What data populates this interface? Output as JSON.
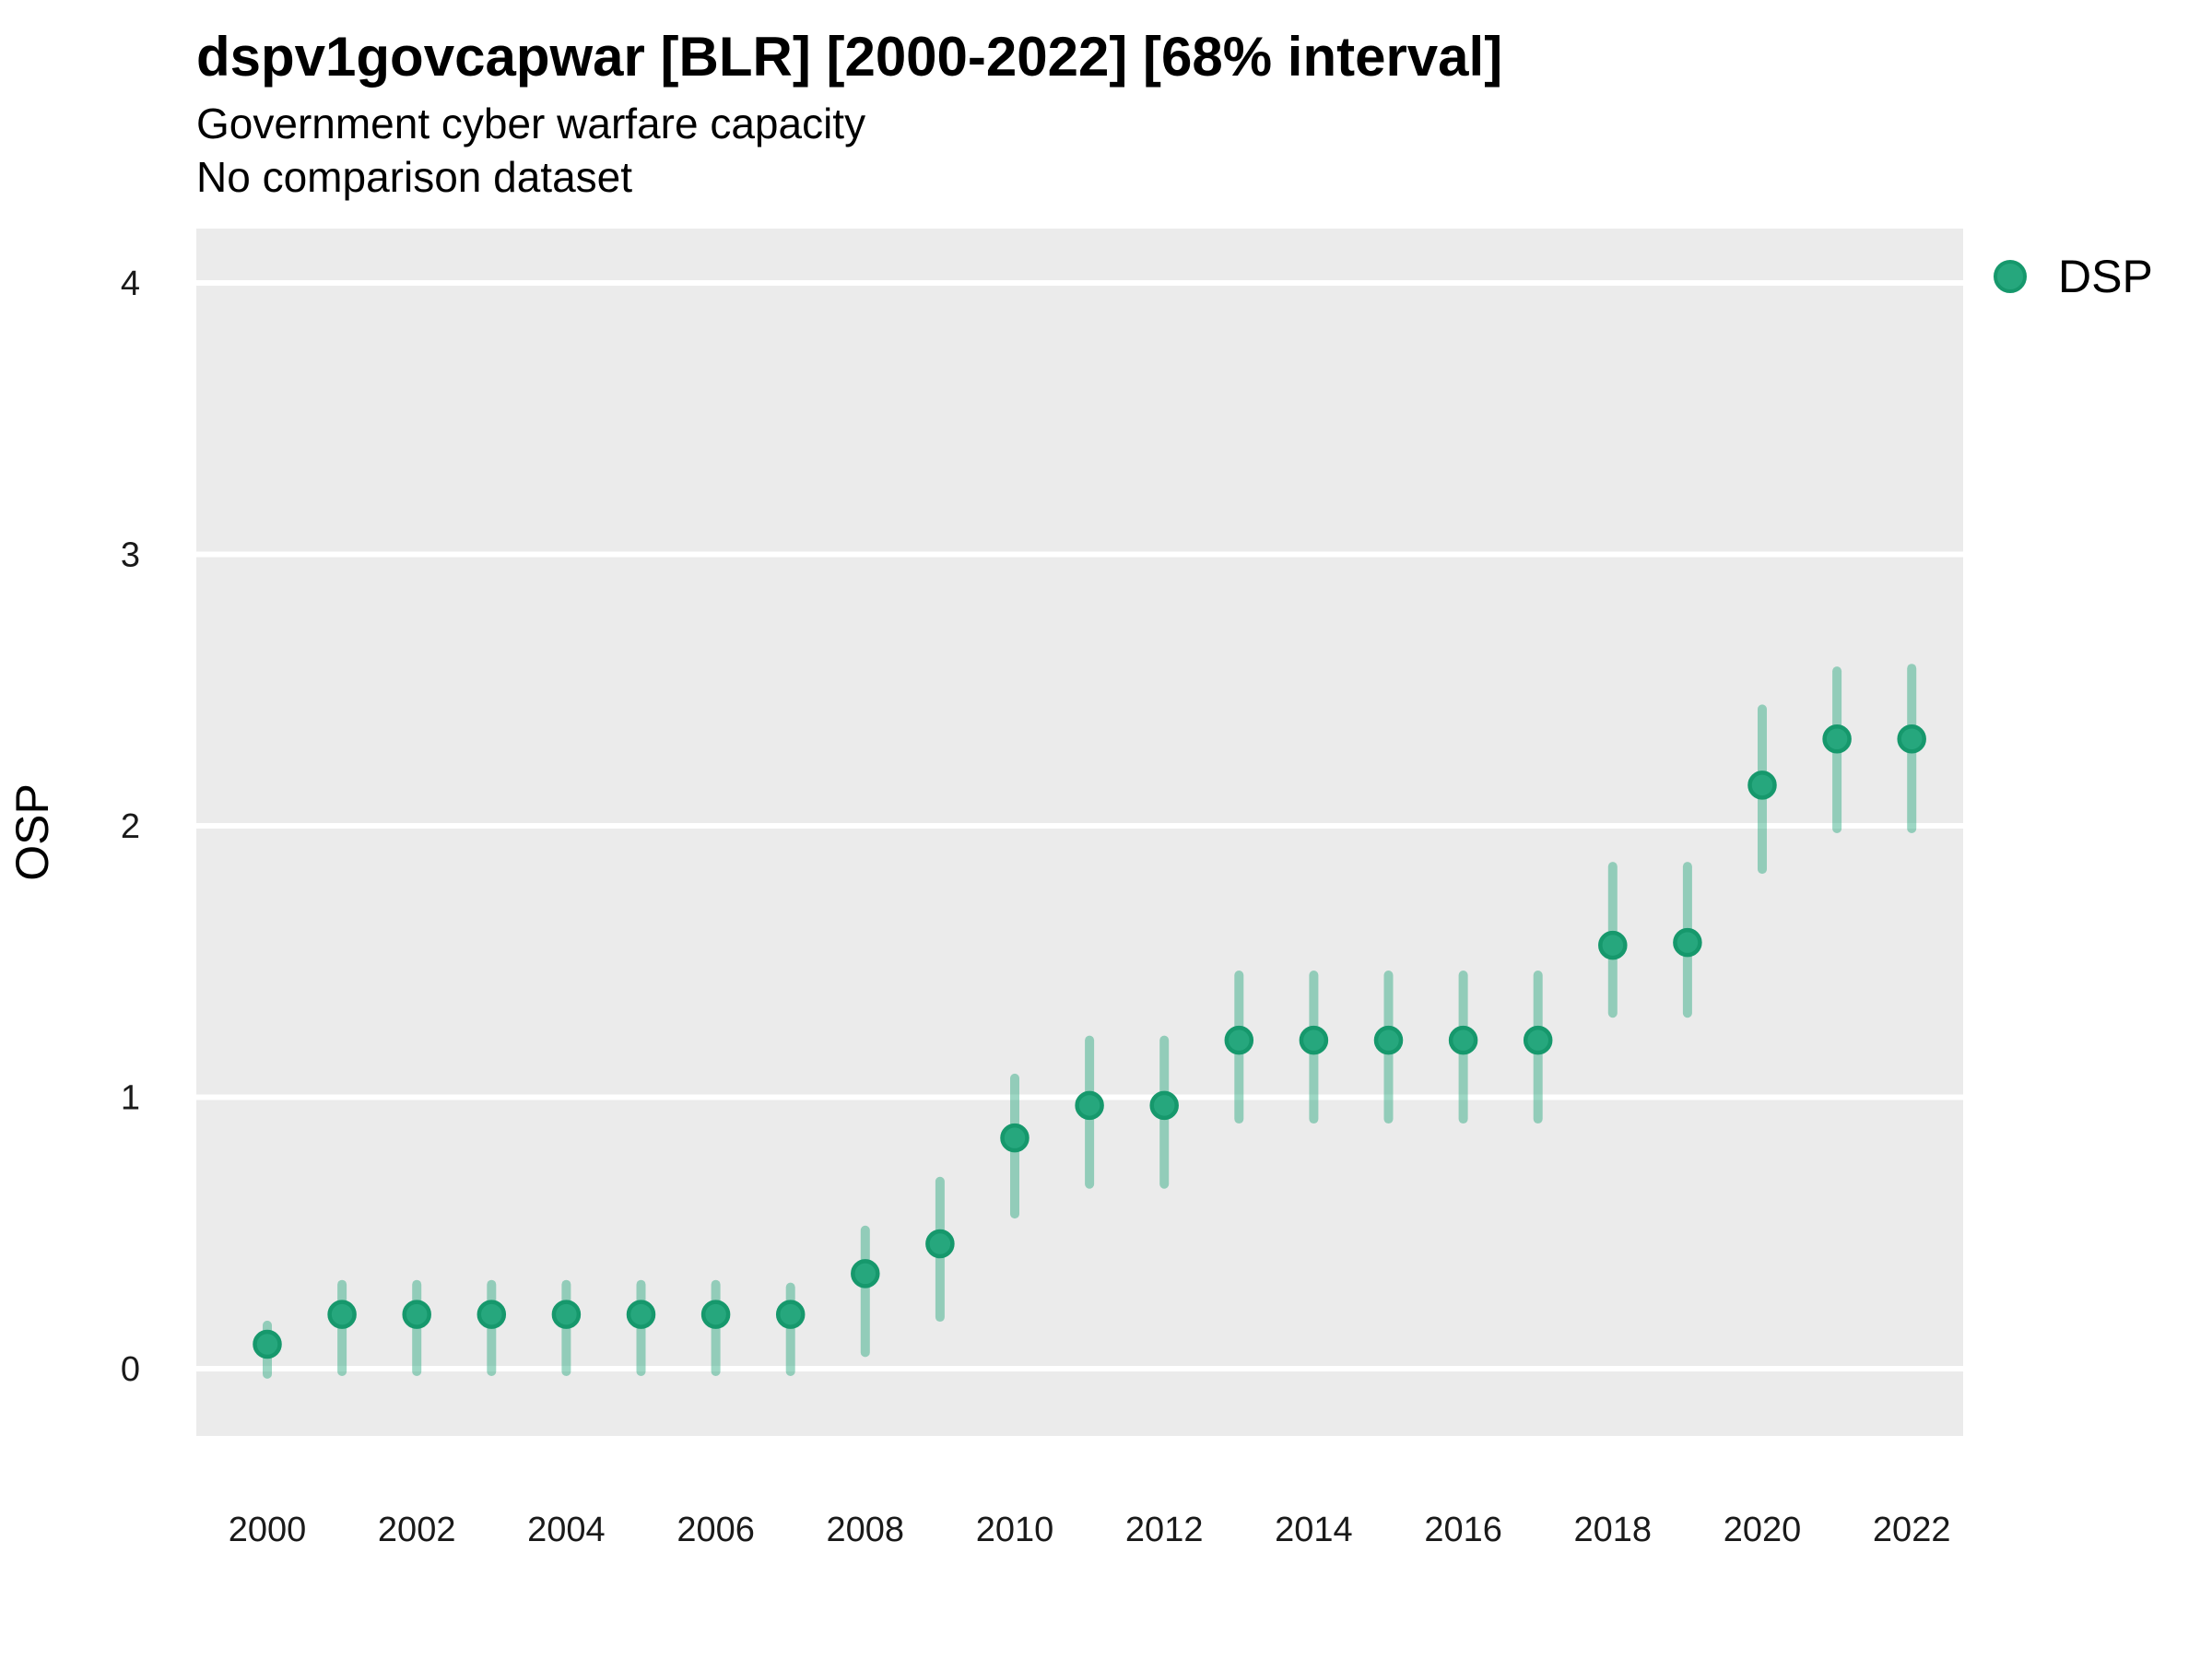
{
  "header": {
    "title": "dspv1govcapwar [BLR] [2000-2022] [68% interval]",
    "subtitle": "Government cyber warfare capacity",
    "note": "No comparison dataset"
  },
  "legend": {
    "label": "DSP"
  },
  "axes": {
    "y_label": "OSP",
    "y_ticks": [
      "0",
      "1",
      "2",
      "3",
      "4"
    ],
    "x_ticks": [
      "2000",
      "2002",
      "2004",
      "2006",
      "2008",
      "2010",
      "2012",
      "2014",
      "2016",
      "2018",
      "2020",
      "2022"
    ]
  },
  "colors": {
    "panel_background": "#EBEBEB",
    "gridline": "#FFFFFF",
    "point_fill": "#26A77D",
    "point_stroke": "#16986C",
    "interval_bar": "rgba(38,167,125,0.45)",
    "page_background": "#FFFFFF",
    "text": "#000000"
  },
  "chart_data": {
    "type": "scatter",
    "title": "dspv1govcapwar [BLR] [2000-2022] [68% interval]",
    "subtitle": "Government cyber warfare capacity",
    "note": "No comparison dataset",
    "xlabel": "",
    "ylabel": "OSP",
    "ylim": [
      -0.25,
      4.2
    ],
    "xlim": [
      1999.05,
      2022.7
    ],
    "grid": "horizontal-major-only",
    "legend_position": "right",
    "interval_level": "68%",
    "y_ticks": [
      0,
      1,
      2,
      3,
      4
    ],
    "x_ticks": [
      2000,
      2002,
      2004,
      2006,
      2008,
      2010,
      2012,
      2014,
      2016,
      2018,
      2020,
      2022
    ],
    "series": [
      {
        "name": "DSP",
        "x": [
          2000,
          2001,
          2002,
          2003,
          2004,
          2005,
          2006,
          2007,
          2008,
          2009,
          2010,
          2011,
          2012,
          2013,
          2014,
          2015,
          2016,
          2017,
          2018,
          2019,
          2020,
          2021,
          2022
        ],
        "y": [
          0.09,
          0.2,
          0.2,
          0.2,
          0.2,
          0.2,
          0.2,
          0.2,
          0.35,
          0.46,
          0.85,
          0.97,
          0.97,
          1.21,
          1.21,
          1.21,
          1.21,
          1.21,
          1.56,
          1.57,
          2.15,
          2.32,
          2.32
        ],
        "lo": [
          -0.02,
          -0.01,
          -0.01,
          -0.01,
          -0.01,
          -0.01,
          -0.01,
          -0.01,
          0.06,
          0.19,
          0.57,
          0.68,
          0.68,
          0.92,
          0.92,
          0.92,
          0.92,
          0.92,
          1.31,
          1.31,
          1.84,
          1.99,
          1.99
        ],
        "hi": [
          0.16,
          0.31,
          0.31,
          0.31,
          0.31,
          0.31,
          0.31,
          0.3,
          0.51,
          0.69,
          1.07,
          1.21,
          1.21,
          1.45,
          1.45,
          1.45,
          1.45,
          1.45,
          1.85,
          1.85,
          2.43,
          2.57,
          2.58
        ]
      }
    ]
  }
}
